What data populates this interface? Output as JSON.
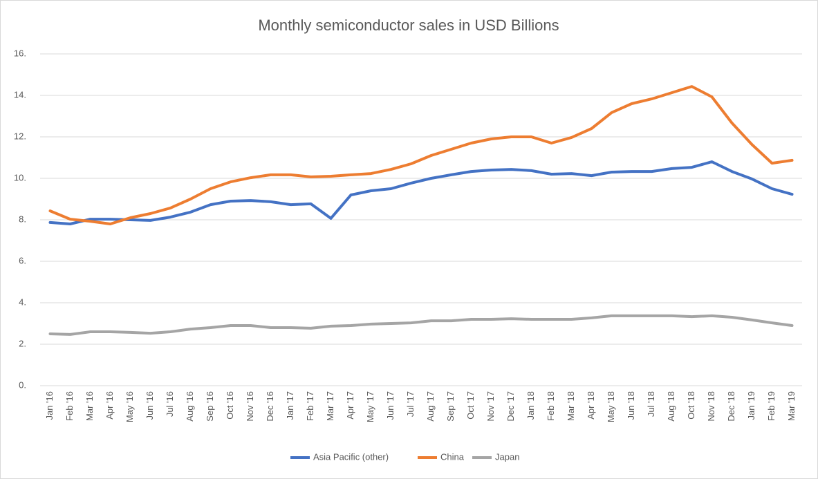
{
  "chart_data": {
    "type": "line",
    "title": "Monthly semiconductor sales in USD Billions",
    "categories": [
      "Jan '16",
      "Feb '16",
      "Mar '16",
      "Apr '16",
      "May '16",
      "Jun '16",
      "Jul '16",
      "Aug '16",
      "Sep '16",
      "Oct '16",
      "Nov '16",
      "Dec '16",
      "Jan '17",
      "Feb '17",
      "Mar '17",
      "Apr '17",
      "May '17",
      "Jun '17",
      "Jul '17",
      "Aug '17",
      "Sep '17",
      "Oct '17",
      "Nov '17",
      "Dec '17",
      "Jan '18",
      "Feb '18",
      "Mar '18",
      "Apr '18",
      "May '18",
      "Jun '18",
      "Jul '18",
      "Aug '18",
      "Oct '18",
      "Nov '18",
      "Dec '18",
      "Jan '19",
      "Feb '19",
      "Mar '19"
    ],
    "series": [
      {
        "name": "Asia Pacific (other)",
        "color": "#4472c4",
        "values": [
          7.87,
          7.8,
          8.03,
          8.03,
          8.0,
          7.97,
          8.13,
          8.37,
          8.73,
          8.9,
          8.93,
          8.87,
          8.73,
          8.77,
          8.07,
          9.2,
          9.4,
          9.5,
          9.77,
          10.0,
          10.17,
          10.33,
          10.4,
          10.43,
          10.37,
          10.2,
          10.23,
          10.13,
          10.3,
          10.33,
          10.33,
          10.47,
          10.53,
          10.8,
          10.33,
          9.97,
          9.5,
          9.23
        ]
      },
      {
        "name": "China",
        "color": "#ed7d31",
        "values": [
          8.43,
          8.03,
          7.93,
          7.8,
          8.1,
          8.3,
          8.57,
          9.0,
          9.5,
          9.83,
          10.03,
          10.17,
          10.17,
          10.07,
          10.1,
          10.17,
          10.23,
          10.43,
          10.7,
          11.1,
          11.4,
          11.7,
          11.9,
          12.0,
          12.0,
          11.7,
          11.97,
          12.4,
          13.17,
          13.6,
          13.83,
          14.13,
          14.43,
          13.93,
          12.67,
          11.63,
          10.73,
          10.87
        ]
      },
      {
        "name": "Japan",
        "color": "#a5a5a5",
        "values": [
          2.5,
          2.47,
          2.6,
          2.6,
          2.57,
          2.53,
          2.6,
          2.73,
          2.8,
          2.9,
          2.9,
          2.8,
          2.8,
          2.77,
          2.87,
          2.9,
          2.97,
          3.0,
          3.03,
          3.13,
          3.13,
          3.2,
          3.2,
          3.23,
          3.2,
          3.2,
          3.2,
          3.27,
          3.37,
          3.37,
          3.37,
          3.37,
          3.33,
          3.37,
          3.3,
          3.17,
          3.03,
          2.9
        ]
      }
    ],
    "ylim": [
      0,
      16
    ],
    "yticks": [
      {
        "value": 0,
        "label": "0."
      },
      {
        "value": 2,
        "label": "2."
      },
      {
        "value": 4,
        "label": "4."
      },
      {
        "value": 6,
        "label": "6."
      },
      {
        "value": 8,
        "label": "8."
      },
      {
        "value": 10,
        "label": "10."
      },
      {
        "value": 12,
        "label": "12."
      },
      {
        "value": 14,
        "label": "14."
      },
      {
        "value": 16,
        "label": "16."
      }
    ],
    "grid": true,
    "legend": "bottom"
  }
}
